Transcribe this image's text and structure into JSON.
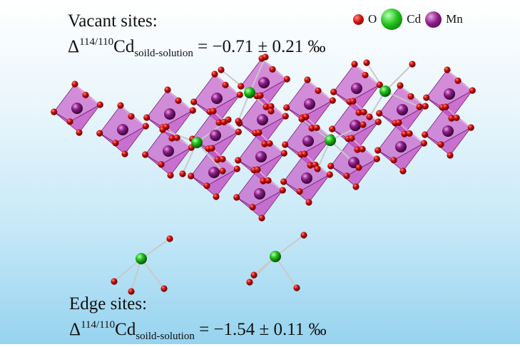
{
  "vacant": {
    "title": "Vacant sites:",
    "delta": "Δ",
    "superscript": "114/110",
    "element": "Cd",
    "subscript": "soild-solution",
    "value": " = −0.71 ± 0.21 ‰"
  },
  "edge": {
    "title": "Edge sites:",
    "delta": "Δ",
    "superscript": "114/110",
    "element": "Cd",
    "subscript": "soild-solution",
    "value": " = −1.54 ± 0.11 ‰"
  },
  "legend": {
    "items": [
      {
        "label": "O",
        "icon": "oxygen-atom-icon",
        "color": "#d0100c"
      },
      {
        "label": "Cd",
        "icon": "cadmium-atom-icon",
        "color": "#21c41b"
      },
      {
        "label": "Mn",
        "icon": "manganese-atom-icon",
        "color": "#8e1f8a"
      }
    ]
  },
  "colors": {
    "octahedron_fill": "#c24bc2",
    "octahedron_edge": "#7a1f7a",
    "oxygen": "#d0100c",
    "cadmium": "#21c41b",
    "manganese": "#8e1f8a",
    "bond": "#c9c9c9",
    "background_top": "#ffffff",
    "background_bottom": "#96d3ef"
  }
}
